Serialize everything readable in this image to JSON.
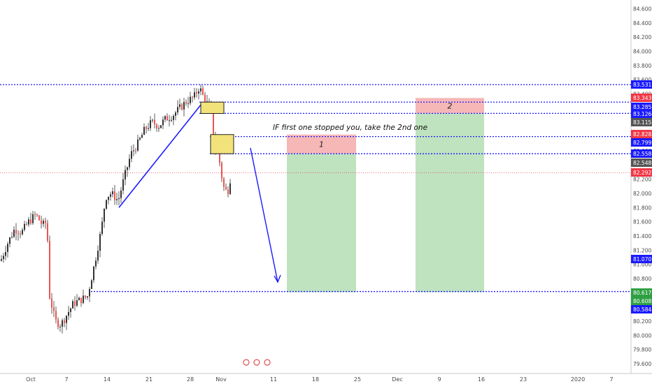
{
  "chart_data": {
    "type": "candlestick",
    "title": "",
    "y_axis": {
      "position": "right",
      "range": [
        79.45,
        84.75
      ],
      "ticks": [
        "79.600",
        "79.800",
        "80.000",
        "80.200",
        "80.400",
        "80.600",
        "80.800",
        "81.000",
        "81.200",
        "81.400",
        "81.600",
        "81.800",
        "82.000",
        "82.200",
        "82.400",
        "82.600",
        "82.800",
        "83.000",
        "83.200",
        "83.400",
        "83.600",
        "83.800",
        "84.000",
        "84.200",
        "84.400",
        "84.600"
      ]
    },
    "x_axis": {
      "ticks": [
        "Oct",
        "7",
        "14",
        "21",
        "28",
        "Nov",
        "11",
        "18",
        "25",
        "Dec",
        "9",
        "16",
        "23",
        "2020",
        "7"
      ]
    },
    "current_price": {
      "value": "82.292",
      "color": "#f23645"
    },
    "horizontal_lines": [
      {
        "value": 83.531,
        "label": "83.531",
        "color": "#1a1aff"
      },
      {
        "value": 83.285,
        "label": "83.285",
        "color": "#1a1aff"
      },
      {
        "value": 83.126,
        "label": "83.126",
        "color": "#1a1aff"
      },
      {
        "value": 82.799,
        "label": "82.799",
        "color": "#1a1aff"
      },
      {
        "value": 82.558,
        "label": "82.558",
        "color": "#1a1aff"
      },
      {
        "value": 80.617,
        "label": "80.617",
        "color": "#1a1aff"
      }
    ],
    "price_tags": [
      {
        "label": "83.531",
        "color": "#1a1aff"
      },
      {
        "label": "83.343",
        "color": "#f23645"
      },
      {
        "label": "83.285",
        "color": "#1a1aff"
      },
      {
        "label": "83.126",
        "color": "#1a1aff"
      },
      {
        "label": "83.115",
        "color": "#555555"
      },
      {
        "label": "82.828",
        "color": "#f23645"
      },
      {
        "label": "82.799",
        "color": "#1a1aff"
      },
      {
        "label": "82.558",
        "color": "#1a1aff"
      },
      {
        "label": "82.548",
        "color": "#555555"
      },
      {
        "label": "82.292",
        "color": "#f23645"
      },
      {
        "label": "81.070",
        "color": "#1a1aff"
      },
      {
        "label": "80.617",
        "color": "#2ea043"
      },
      {
        "label": "80.608",
        "color": "#2ea043"
      },
      {
        "label": "80.584",
        "color": "#1a1aff"
      }
    ],
    "positions": [
      {
        "label": "1",
        "stop": 82.828,
        "entry": 82.558,
        "target": 80.608
      },
      {
        "label": "2",
        "stop": 83.343,
        "entry": 83.126,
        "target": 80.608
      }
    ],
    "annotation": "IF first one stopped you, take the 2nd one",
    "colors": {
      "up": "#26a69a",
      "down": "#ef5350",
      "wick": "#333333",
      "line": "#1a1aff",
      "zone": "#f2e27a",
      "stop": "#f6b7b7",
      "target": "#bfe3bf"
    }
  }
}
